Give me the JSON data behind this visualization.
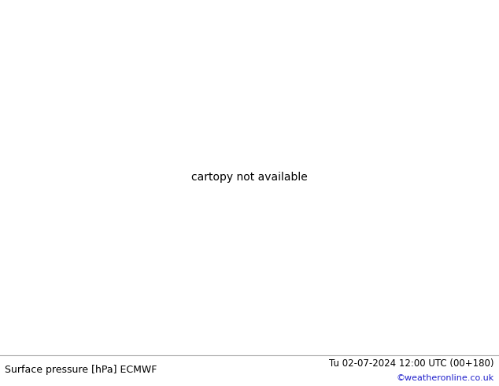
{
  "title_left": "Surface pressure [hPa] ECMWF",
  "title_right": "Tu 02-07-2024 12:00 UTC (00+180)",
  "copyright": "©weatheronline.co.uk",
  "fig_width": 6.34,
  "fig_height": 4.9,
  "dpi": 100,
  "land_green": "#b8d8a0",
  "land_gray": "#c0bfb8",
  "ocean_color": "#d8d8d8",
  "border_color": "#888888",
  "blue": "#0055dd",
  "red": "#dd0000",
  "black": "#000000",
  "bottom_bg": "#f2f2f2",
  "separator_color": "#aaaaaa",
  "copyright_color": "#2222cc",
  "contour_lw": 1.0,
  "black_lw": 1.4,
  "label_fontsize": 7.0
}
